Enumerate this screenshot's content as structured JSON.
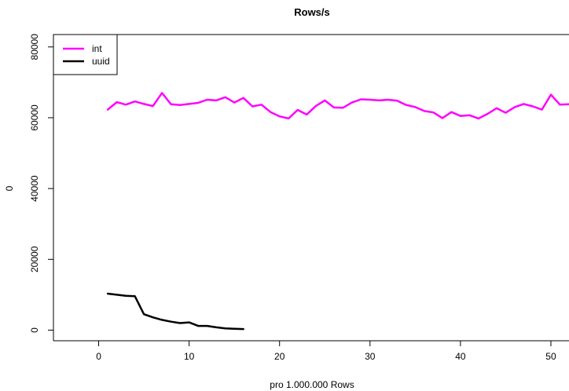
{
  "chart_data": {
    "type": "line",
    "title": "Rows/s",
    "xlabel": "pro 1.000.000 Rows",
    "ylabel": "0",
    "xlim": [
      -5,
      52
    ],
    "ylim": [
      -3000,
      83500
    ],
    "x_ticks": [
      0,
      10,
      20,
      30,
      40,
      50
    ],
    "x_tick_labels": [
      "0",
      "10",
      "20",
      "30",
      "40",
      "50"
    ],
    "y_ticks": [
      0,
      20000,
      40000,
      60000,
      80000
    ],
    "y_tick_labels": [
      "0",
      "20000",
      "40000",
      "60000",
      "80000"
    ],
    "grid": false,
    "legend_position": "top-left",
    "series": [
      {
        "name": "int",
        "color": "#ff00ff",
        "x": [
          1,
          2,
          3,
          4,
          5,
          6,
          7,
          8,
          9,
          10,
          11,
          12,
          13,
          14,
          15,
          16,
          17,
          18,
          19,
          20,
          21,
          22,
          23,
          24,
          25,
          26,
          27,
          28,
          29,
          30,
          31,
          32,
          33,
          34,
          35,
          36,
          37,
          38,
          39,
          40,
          41,
          42,
          43,
          44,
          45,
          46,
          47,
          48,
          49,
          50,
          51,
          52
        ],
        "values": [
          62300,
          64400,
          63700,
          64600,
          63900,
          63300,
          67000,
          63800,
          63600,
          63900,
          64200,
          65100,
          64900,
          65800,
          64300,
          65600,
          63200,
          63700,
          61600,
          60400,
          59800,
          62200,
          60900,
          63300,
          64900,
          62900,
          62800,
          64300,
          65200,
          65100,
          64900,
          65100,
          64800,
          63600,
          63000,
          61900,
          61500,
          59900,
          61600,
          60500,
          60700,
          59800,
          61100,
          62700,
          61400,
          63000,
          63900,
          63200,
          62300,
          66500,
          63700,
          63800
        ]
      },
      {
        "name": "uuid",
        "color": "#000000",
        "x": [
          1,
          2,
          3,
          4,
          5,
          6,
          7,
          8,
          9,
          10,
          11,
          12,
          13,
          14,
          15,
          16
        ],
        "values": [
          10300,
          10000,
          9700,
          9600,
          4500,
          3600,
          2900,
          2400,
          2000,
          2200,
          1200,
          1200,
          800,
          500,
          400,
          300
        ]
      }
    ]
  }
}
